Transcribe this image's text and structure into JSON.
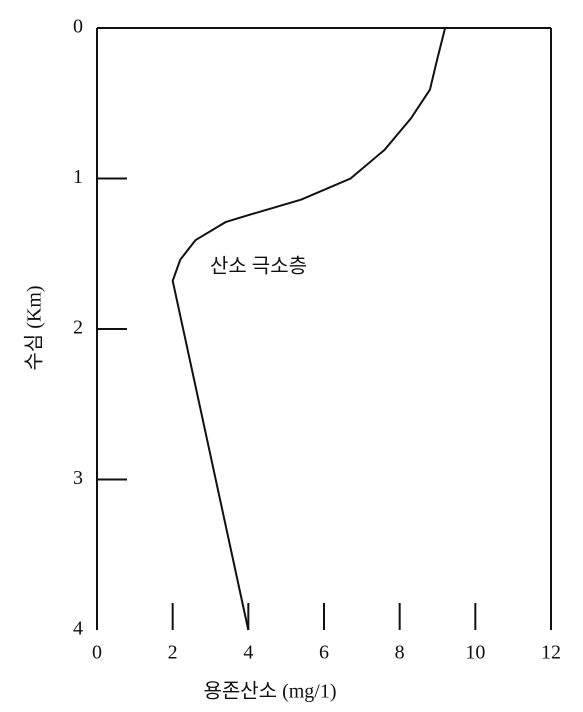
{
  "chart_data": {
    "type": "line",
    "x_label": "용존산소 (mg/1)",
    "y_label": "수심 (Km)",
    "annotation": "산소 극소층",
    "x": [
      9.2,
      9.0,
      8.8,
      8.3,
      7.6,
      6.7,
      5.4,
      4.05,
      3.4,
      2.6,
      2.2,
      2.0,
      4.0
    ],
    "values": [
      0,
      0.2,
      0.41,
      0.6,
      0.81,
      1.0,
      1.14,
      1.24,
      1.29,
      1.41,
      1.54,
      1.68,
      4.0
    ],
    "color": "#111111",
    "xlim": [
      0,
      12
    ],
    "xticks": [
      0,
      2,
      4,
      6,
      8,
      10,
      12
    ],
    "ylim": [
      0,
      4
    ],
    "yticks": [
      0,
      1,
      2,
      3,
      4
    ],
    "y_reversed": true
  }
}
